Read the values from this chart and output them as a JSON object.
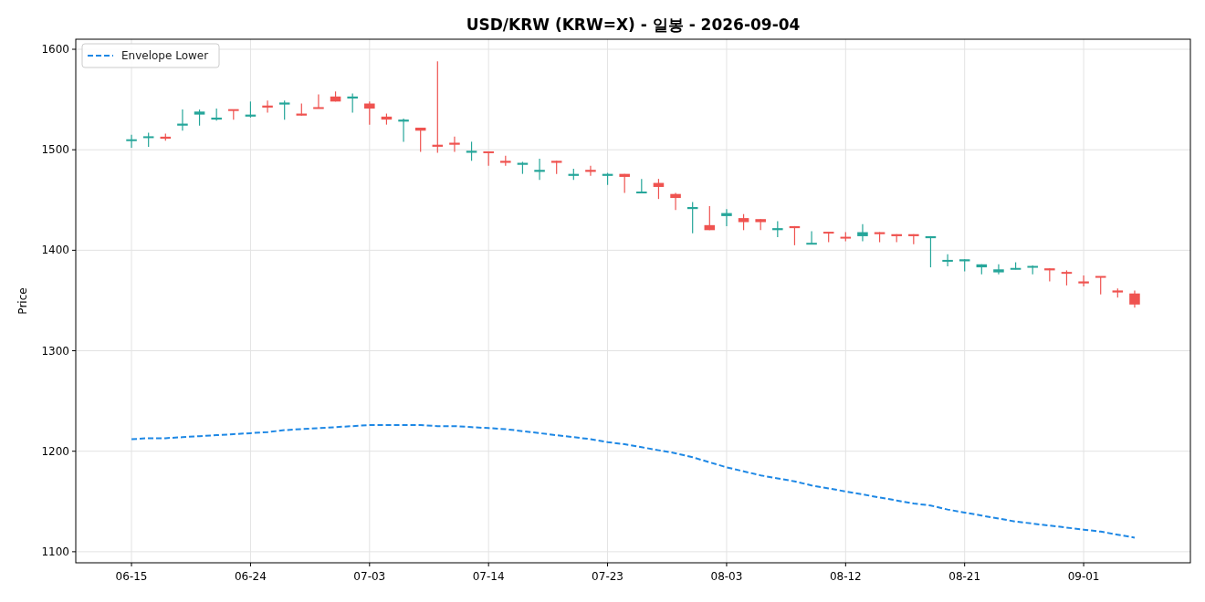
{
  "chart_data": {
    "type": "candlestick",
    "title": "USD/KRW (KRW=X) - 일봉 - 2026-09-04",
    "ylabel": "Price",
    "categories": [
      "06-15",
      null,
      null,
      null,
      null,
      null,
      null,
      "06-24",
      null,
      null,
      null,
      null,
      null,
      null,
      "07-03",
      null,
      null,
      null,
      null,
      null,
      null,
      "07-14",
      null,
      null,
      null,
      null,
      null,
      null,
      "07-23",
      null,
      null,
      null,
      null,
      null,
      null,
      "08-03",
      null,
      null,
      null,
      null,
      null,
      null,
      "08-12",
      null,
      null,
      null,
      null,
      null,
      null,
      "08-21",
      null,
      null,
      null,
      null,
      null,
      null,
      "09-01",
      null,
      null,
      null
    ],
    "ohlc": [
      [
        1509,
        1515,
        1502,
        1510
      ],
      [
        1512,
        1517,
        1503,
        1513
      ],
      [
        1513,
        1516,
        1509,
        1511
      ],
      [
        1524,
        1540,
        1519,
        1526
      ],
      [
        1535,
        1540,
        1524,
        1538
      ],
      [
        1530,
        1541,
        1529,
        1532
      ],
      [
        1540,
        1540,
        1530,
        1539
      ],
      [
        1533,
        1548,
        1532,
        1535
      ],
      [
        1544,
        1549,
        1537,
        1542
      ],
      [
        1545,
        1549,
        1530,
        1547
      ],
      [
        1536,
        1546,
        1534,
        1534
      ],
      [
        1542,
        1555,
        1541,
        1541
      ],
      [
        1553,
        1558,
        1548,
        1548
      ],
      [
        1551,
        1556,
        1537,
        1553
      ],
      [
        1546,
        1548,
        1525,
        1541
      ],
      [
        1533,
        1536,
        1525,
        1530
      ],
      [
        1528,
        1531,
        1508,
        1530
      ],
      [
        1522,
        1522,
        1498,
        1519
      ],
      [
        1505,
        1588,
        1497,
        1503
      ],
      [
        1507,
        1513,
        1498,
        1505
      ],
      [
        1497,
        1508,
        1489,
        1499
      ],
      [
        1498,
        1498,
        1484,
        1497
      ],
      [
        1489,
        1494,
        1484,
        1487
      ],
      [
        1485,
        1488,
        1476,
        1487
      ],
      [
        1478,
        1491,
        1470,
        1480
      ],
      [
        1489,
        1489,
        1476,
        1487
      ],
      [
        1474,
        1481,
        1470,
        1476
      ],
      [
        1480,
        1484,
        1474,
        1478
      ],
      [
        1474,
        1477,
        1465,
        1476
      ],
      [
        1476,
        1476,
        1457,
        1473
      ],
      [
        1457,
        1471,
        1457,
        1458
      ],
      [
        1467,
        1471,
        1451,
        1463
      ],
      [
        1456,
        1457,
        1440,
        1452
      ],
      [
        1441,
        1448,
        1417,
        1443
      ],
      [
        1425,
        1444,
        1420,
        1420
      ],
      [
        1434,
        1441,
        1424,
        1437
      ],
      [
        1432,
        1436,
        1420,
        1428
      ],
      [
        1431,
        1431,
        1420,
        1428
      ],
      [
        1420,
        1429,
        1413,
        1422
      ],
      [
        1424,
        1424,
        1405,
        1422
      ],
      [
        1406,
        1419,
        1406,
        1407
      ],
      [
        1418,
        1418,
        1408,
        1417
      ],
      [
        1413,
        1418,
        1409,
        1412
      ],
      [
        1414,
        1426,
        1409,
        1418
      ],
      [
        1418,
        1418,
        1408,
        1416
      ],
      [
        1416,
        1416,
        1408,
        1414
      ],
      [
        1416,
        1416,
        1406,
        1414
      ],
      [
        1412,
        1414,
        1383,
        1414
      ],
      [
        1389,
        1396,
        1384,
        1390
      ],
      [
        1389,
        1391,
        1379,
        1391
      ],
      [
        1383,
        1386,
        1376,
        1386
      ],
      [
        1378,
        1386,
        1376,
        1381
      ],
      [
        1381,
        1388,
        1381,
        1382
      ],
      [
        1383,
        1385,
        1376,
        1384
      ],
      [
        1382,
        1382,
        1369,
        1380
      ],
      [
        1378,
        1380,
        1365,
        1377
      ],
      [
        1369,
        1375,
        1364,
        1367
      ],
      [
        1374,
        1374,
        1356,
        1373
      ],
      [
        1360,
        1362,
        1353,
        1358
      ],
      [
        1357,
        1360,
        1343,
        1346
      ]
    ],
    "colors": [
      "#26a69a",
      "#26a69a",
      "#ef5350",
      "#26a69a",
      "#26a69a",
      "#26a69a",
      "#ef5350",
      "#26a69a",
      "#ef5350",
      "#26a69a",
      "#ef5350",
      "#ef5350",
      "#ef5350",
      "#26a69a",
      "#ef5350",
      "#ef5350",
      "#26a69a",
      "#ef5350",
      "#ef5350",
      "#ef5350",
      "#26a69a",
      "#ef5350",
      "#ef5350",
      "#26a69a",
      "#26a69a",
      "#ef5350",
      "#26a69a",
      "#ef5350",
      "#26a69a",
      "#ef5350",
      "#26a69a",
      "#ef5350",
      "#ef5350",
      "#26a69a",
      "#ef5350",
      "#26a69a",
      "#ef5350",
      "#ef5350",
      "#26a69a",
      "#ef5350",
      "#26a69a",
      "#ef5350",
      "#ef5350",
      "#26a69a",
      "#ef5350",
      "#ef5350",
      "#ef5350",
      "#26a69a",
      "#26a69a",
      "#26a69a",
      "#26a69a",
      "#26a69a",
      "#26a69a",
      "#26a69a",
      "#ef5350",
      "#ef5350",
      "#ef5350",
      "#ef5350",
      "#ef5350",
      "#ef5350"
    ],
    "series": [
      {
        "name": "Envelope Lower",
        "type": "line",
        "color": "#1e88e5",
        "values": [
          1212,
          1213,
          1213,
          1214,
          1215,
          1216,
          1217,
          1218,
          1219,
          1221,
          1222,
          1223,
          1224,
          1225,
          1226,
          1226,
          1226,
          1226,
          1225,
          1225,
          1224,
          1223,
          1222,
          1220,
          1218,
          1216,
          1214,
          1212,
          1209,
          1207,
          1204,
          1201,
          1198,
          1194,
          1189,
          1184,
          1180,
          1176,
          1173,
          1170,
          1166,
          1163,
          1160,
          1157,
          1154,
          1151,
          1148,
          1146,
          1142,
          1139,
          1136,
          1133,
          1130,
          1128,
          1126,
          1124,
          1122,
          1120,
          1117,
          1114
        ]
      }
    ],
    "line_style": "dashed",
    "ylim": [
      1089,
      1610
    ],
    "yticks": [
      1100,
      1200,
      1300,
      1400,
      1500,
      1600
    ],
    "grid": true,
    "legend": "top left"
  }
}
